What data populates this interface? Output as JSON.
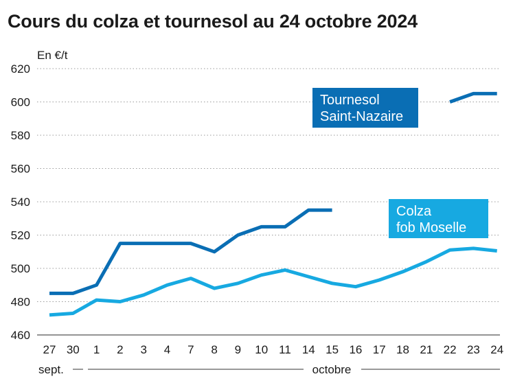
{
  "chart_data": {
    "type": "line",
    "title": "Cours du colza et tournesol au 24 octobre 2024",
    "ylabel": "En €/t",
    "ylim": [
      460,
      620
    ],
    "yticks": [
      460,
      480,
      500,
      520,
      540,
      560,
      580,
      600,
      620
    ],
    "categories": [
      "27",
      "30",
      "1",
      "2",
      "3",
      "4",
      "7",
      "8",
      "9",
      "10",
      "11",
      "14",
      "15",
      "16",
      "17",
      "18",
      "21",
      "22",
      "23",
      "24"
    ],
    "periods": [
      {
        "label": "sept.",
        "from": 0,
        "to": 1
      },
      {
        "label": "octobre",
        "from": 2,
        "to": 19
      }
    ],
    "grid": true,
    "series": [
      {
        "name": "Tournesol Saint-Nazaire",
        "name_lines": [
          "Tournesol",
          "Saint-Nazaire"
        ],
        "color": "#0a6eb4",
        "values": [
          485,
          485,
          490,
          515,
          515,
          515,
          515,
          510,
          520,
          525,
          525,
          535,
          535,
          null,
          null,
          null,
          null,
          600,
          605,
          605
        ]
      },
      {
        "name": "Colza fob Moselle",
        "name_lines": [
          "Colza",
          "fob Moselle"
        ],
        "color": "#17a9e1",
        "values": [
          472,
          473,
          481,
          480,
          484,
          490,
          494,
          488,
          491,
          496,
          499,
          495,
          491,
          489,
          493,
          498,
          504,
          511,
          512,
          510.5
        ]
      }
    ]
  }
}
